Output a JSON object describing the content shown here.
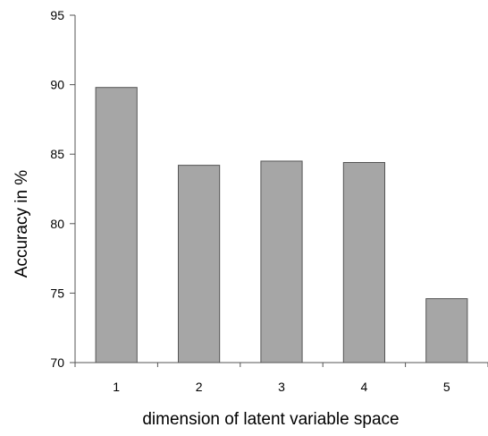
{
  "chart_data": {
    "type": "bar",
    "categories": [
      "1",
      "2",
      "3",
      "4",
      "5"
    ],
    "values": [
      89.8,
      84.2,
      84.5,
      84.4,
      74.6
    ],
    "xlabel": "dimension of latent variable space",
    "ylabel": "Accuracy in %",
    "ylim": [
      70,
      95
    ],
    "yticks": [
      70,
      75,
      80,
      85,
      90,
      95
    ],
    "bar_color": "#a6a6a6",
    "grid": false,
    "legend": "none"
  }
}
